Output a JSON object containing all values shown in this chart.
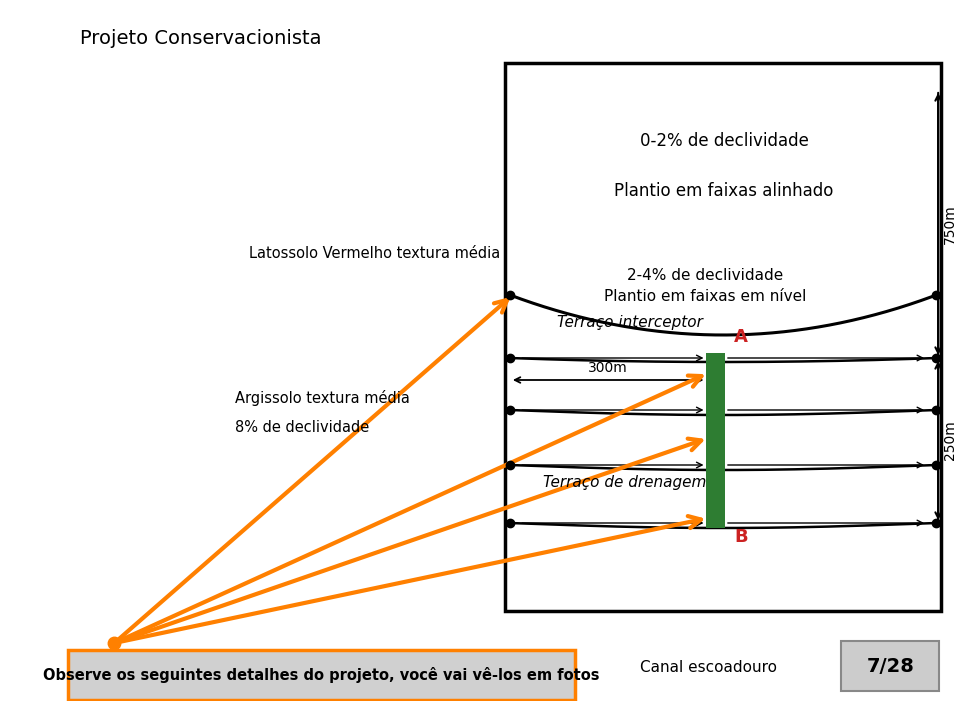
{
  "title": "Projeto Conservacionista",
  "slide_num": "7/28",
  "bg_color": "#ffffff",
  "box_color": "#ffffff",
  "text_0_2": "0-2% de declividade",
  "text_plantio_alinhado": "Plantio em faixas alinhado",
  "text_2_4": "2-4% de declividade\nPlantio em faixas em nível",
  "text_terraço_interceptor": "Terraço interceptor",
  "text_300m": "300m",
  "text_terraço_drenagem": "Terraço de drenagem",
  "text_750m": "750m",
  "text_250m": "250m",
  "text_A": "A",
  "text_B": "B",
  "text_latossolo": "Latossolo Vermelho textura média",
  "text_argissolo": "Argissolo textura média",
  "text_8pct": "8% de declividade",
  "text_canal": "Canal escoadouro",
  "text_bottom": "Observe os seguintes detalhes do projeto, você vai vê-los em fotos",
  "orange_color": "#FF8000",
  "green_color": "#2e7d32",
  "red_color": "#cc2222",
  "black_color": "#000000",
  "white_color": "#ffffff",
  "gray_fill": "#d0d0d0"
}
